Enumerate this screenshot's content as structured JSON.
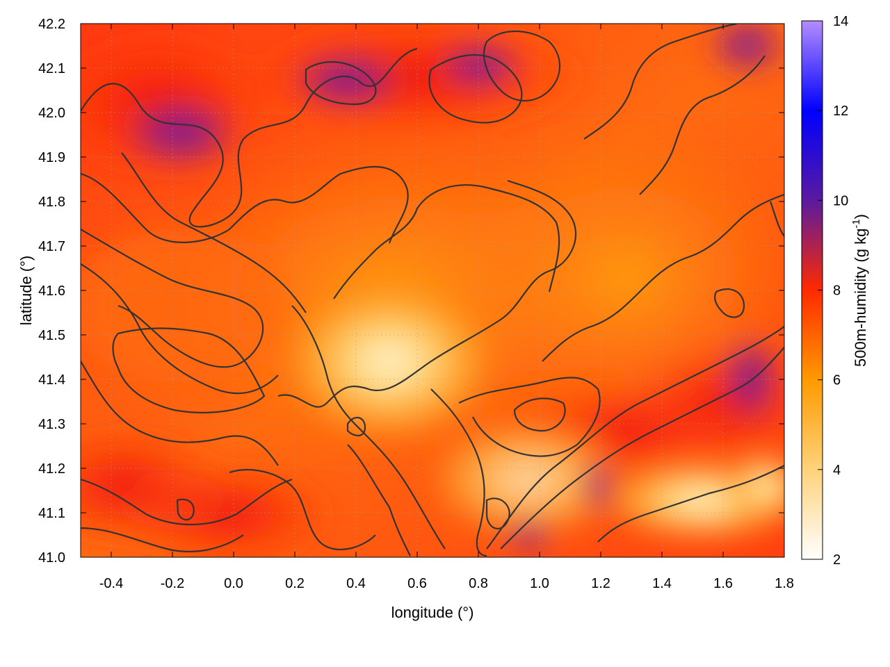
{
  "chart_data": {
    "type": "heatmap",
    "title": "",
    "xlabel": "longitude (°)",
    "ylabel": "latitude (°)",
    "xlim": [
      -0.5,
      1.8
    ],
    "ylim": [
      41.0,
      42.2
    ],
    "x_ticks": [
      "-0.4",
      "-0.2",
      "0.0",
      "0.2",
      "0.4",
      "0.6",
      "0.8",
      "1.0",
      "1.2",
      "1.4",
      "1.6",
      "1.8"
    ],
    "y_ticks": [
      "41.0",
      "41.1",
      "41.2",
      "41.3",
      "41.4",
      "41.5",
      "41.6",
      "41.7",
      "41.8",
      "41.9",
      "42.0",
      "42.1",
      "42.2"
    ],
    "colorbar": {
      "label": "500m-humidity (g kg-1)",
      "label_main": "500m-humidity (g kg",
      "label_sup": "-1",
      "label_close": ")",
      "range": [
        2,
        14
      ],
      "ticks": [
        "2",
        "4",
        "6",
        "8",
        "10",
        "12",
        "14"
      ],
      "colors": [
        "#ffffff",
        "#ffd27a",
        "#ff9a00",
        "#ff2a00",
        "#5a1aa0",
        "#0000ff",
        "#b48cff"
      ]
    },
    "grid": true,
    "contours": "overlaid (terrain elevation)"
  }
}
